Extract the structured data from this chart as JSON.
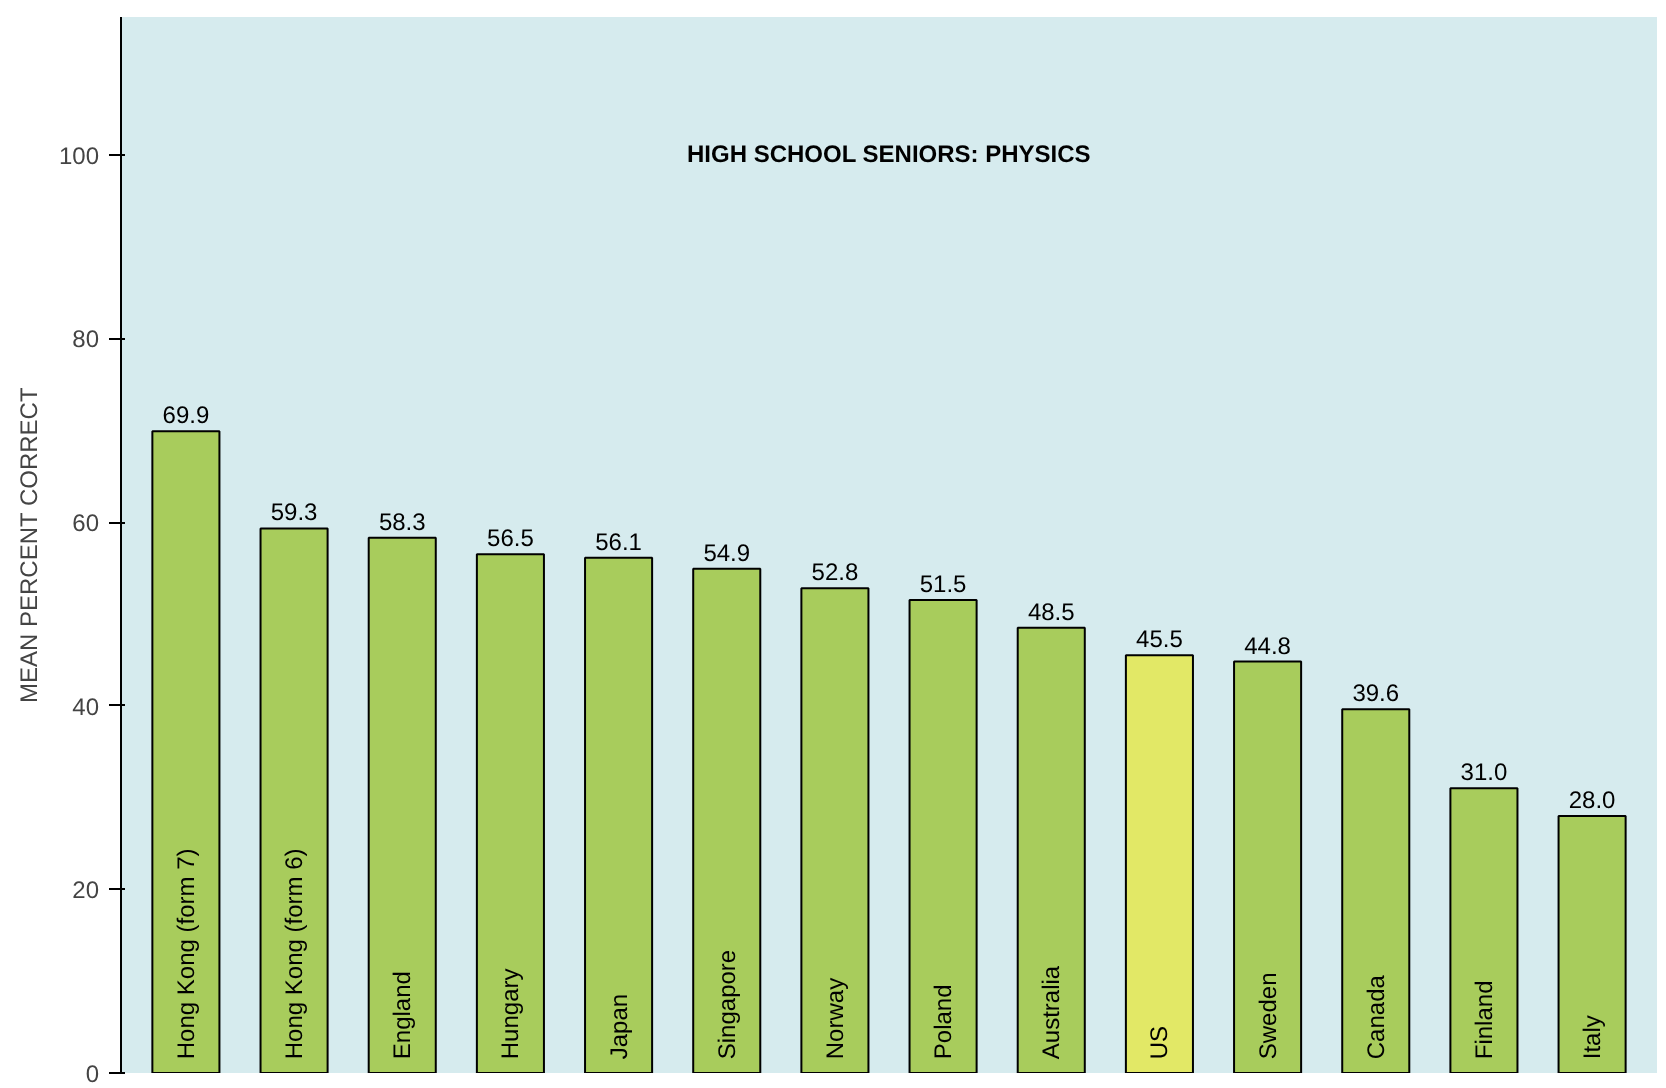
{
  "chart_data": {
    "type": "bar",
    "title": "HIGH SCHOOL SENIORS: PHYSICS",
    "ylabel": "MEAN PERCENT CORRECT",
    "categories": [
      "Hong Kong (form 7)",
      "Hong Kong (form 6)",
      "England",
      "Hungary",
      "Japan",
      "Singapore",
      "Norway",
      "Poland",
      "Australia",
      "US",
      "Sweden",
      "Canada",
      "Finland",
      "Italy"
    ],
    "values": [
      69.9,
      59.3,
      58.3,
      56.5,
      56.1,
      54.9,
      52.8,
      51.5,
      48.5,
      45.5,
      44.8,
      39.6,
      31.0,
      28.0
    ],
    "colors": [
      "#a8cc5c",
      "#a8cc5c",
      "#a8cc5c",
      "#a8cc5c",
      "#a8cc5c",
      "#a8cc5c",
      "#a8cc5c",
      "#a8cc5c",
      "#a8cc5c",
      "#e2e866",
      "#a8cc5c",
      "#a8cc5c",
      "#a8cc5c",
      "#a8cc5c"
    ],
    "value_labels": [
      "69.9",
      "59.3",
      "58.3",
      "56.5",
      "56.1",
      "54.9",
      "52.8",
      "51.5",
      "48.5",
      "45.5",
      "44.8",
      "39.6",
      "31.0",
      "28.0"
    ],
    "ylim": [
      0,
      115
    ],
    "yticks": [
      0,
      20,
      40,
      60,
      80,
      100
    ]
  }
}
